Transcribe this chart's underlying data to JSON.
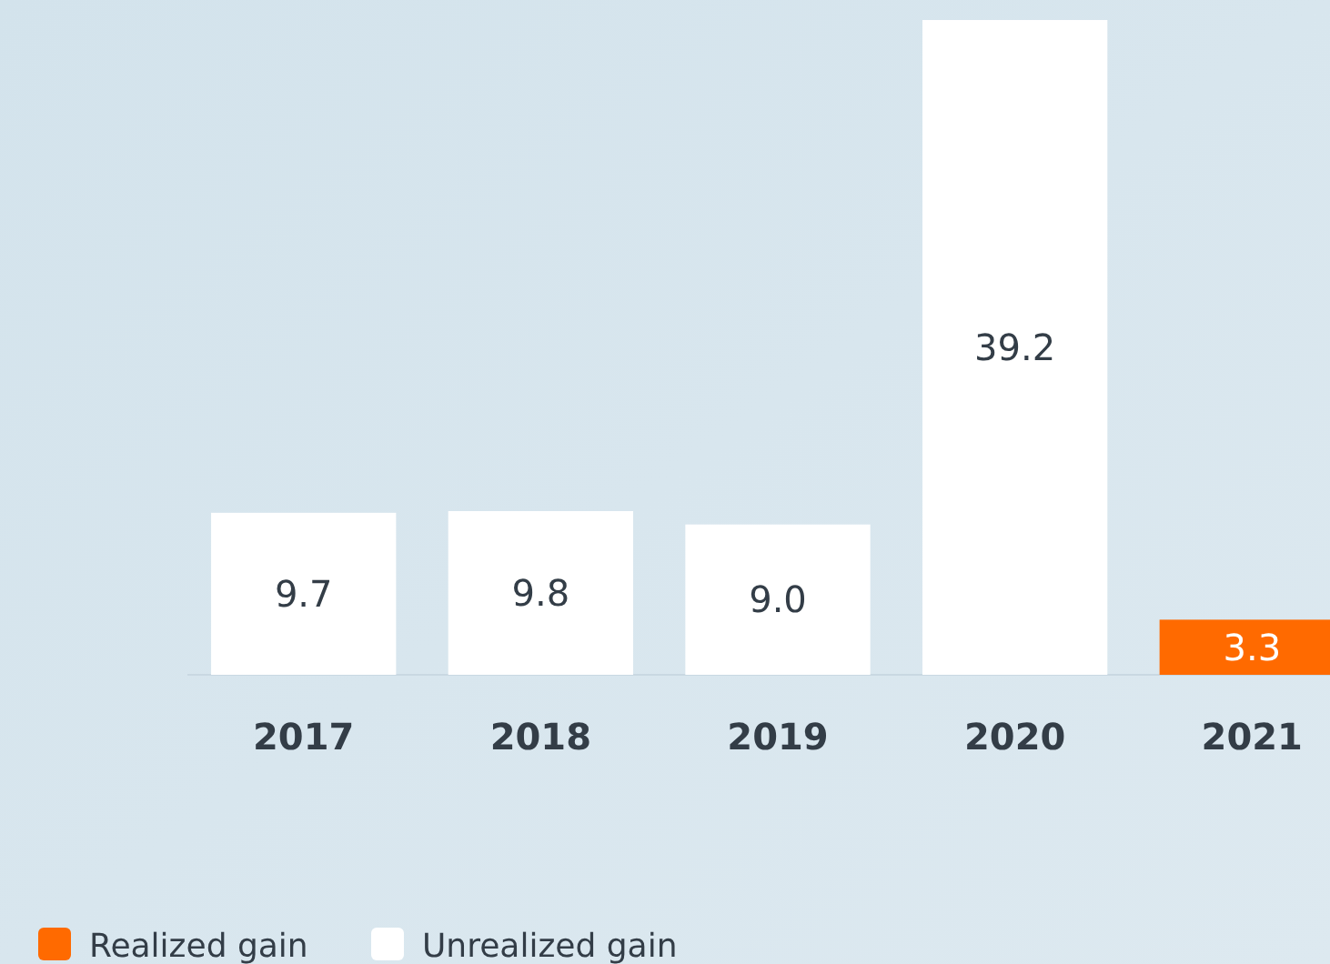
{
  "chart_data": {
    "type": "bar",
    "categories": [
      "2017",
      "2018",
      "2019",
      "2020",
      "2021"
    ],
    "stacked": true,
    "data_labels": true,
    "legend": "bottom left",
    "series": [
      {
        "name": "Realized gain",
        "color": "#ff6a00",
        "values": [
          null,
          null,
          null,
          null,
          3.3
        ],
        "value_labels": [
          null,
          null,
          null,
          null,
          "3.3"
        ]
      },
      {
        "name": "Unrealized gain",
        "color": "#ffffff",
        "values": [
          9.7,
          9.8,
          9.0,
          39.2,
          null
        ],
        "value_labels": [
          "9.7",
          "9.8",
          "9.0",
          "39.2",
          null
        ]
      }
    ]
  }
}
